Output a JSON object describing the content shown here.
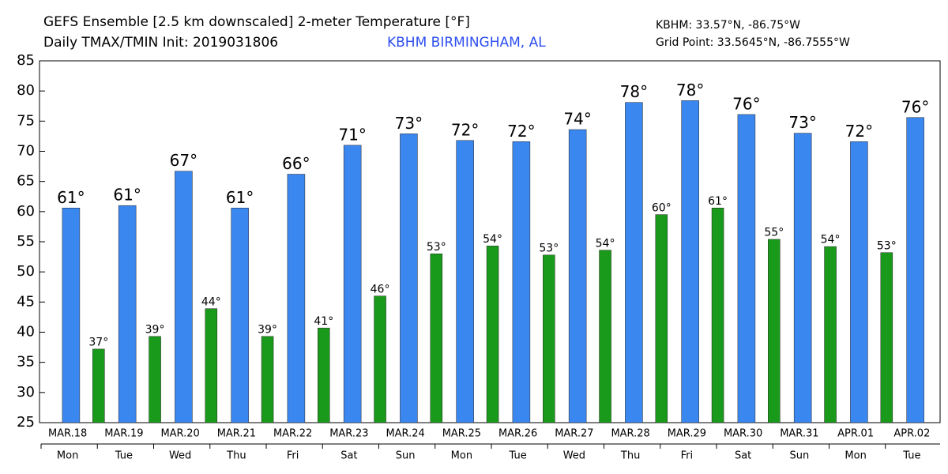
{
  "chart_data": {
    "type": "bar",
    "title": "GEFS Ensemble [2.5 km downscaled] 2-meter Temperature [°F]",
    "subtitle": "Daily TMAX/TMIN Init: 2019031806",
    "location": "KBHM BIRMINGHAM, AL",
    "station": "KBHM: 33.57°N, -86.75°W",
    "grid_point": "Grid Point: 33.5645°N, -86.7555°W",
    "categories": [
      "MAR.18",
      "MAR.19",
      "MAR.20",
      "MAR.21",
      "MAR.22",
      "MAR.23",
      "MAR.24",
      "MAR.25",
      "MAR.26",
      "MAR.27",
      "MAR.28",
      "MAR.29",
      "MAR.30",
      "MAR.31",
      "APR.01",
      "APR.02"
    ],
    "weekdays": [
      "Mon",
      "Tue",
      "Wed",
      "Thu",
      "Fri",
      "Sat",
      "Sun",
      "Mon",
      "Tue",
      "Wed",
      "Thu",
      "Fri",
      "Sat",
      "Sun",
      "Mon",
      "Tue"
    ],
    "series": [
      {
        "color": "#3b87f0",
        "values": [
          60.6,
          61,
          66.7,
          60.6,
          66.2,
          71,
          72.9,
          71.8,
          71.6,
          73.6,
          78.1,
          78.4,
          76.1,
          73,
          71.6,
          75.6
        ],
        "value_labels": [
          "61°",
          "61°",
          "67°",
          "61°",
          "66°",
          "71°",
          "73°",
          "72°",
          "72°",
          "74°",
          "78°",
          "78°",
          "76°",
          "73°",
          "72°",
          "76°"
        ]
      },
      {
        "color": "#1a9a1a",
        "values": [
          37.2,
          39.3,
          43.9,
          39.3,
          40.7,
          46,
          53,
          54.3,
          52.8,
          53.6,
          59.5,
          60.6,
          55.4,
          54.2,
          53.2,
          null
        ],
        "value_labels": [
          "37°",
          "39°",
          "44°",
          "39°",
          "41°",
          "46°",
          "53°",
          "54°",
          "53°",
          "54°",
          "60°",
          "61°",
          "55°",
          "54°",
          "53°",
          null
        ]
      }
    ],
    "ylim": [
      25,
      85
    ],
    "yticks": [
      25,
      30,
      35,
      40,
      45,
      50,
      55,
      60,
      65,
      70,
      75,
      80,
      85
    ]
  }
}
